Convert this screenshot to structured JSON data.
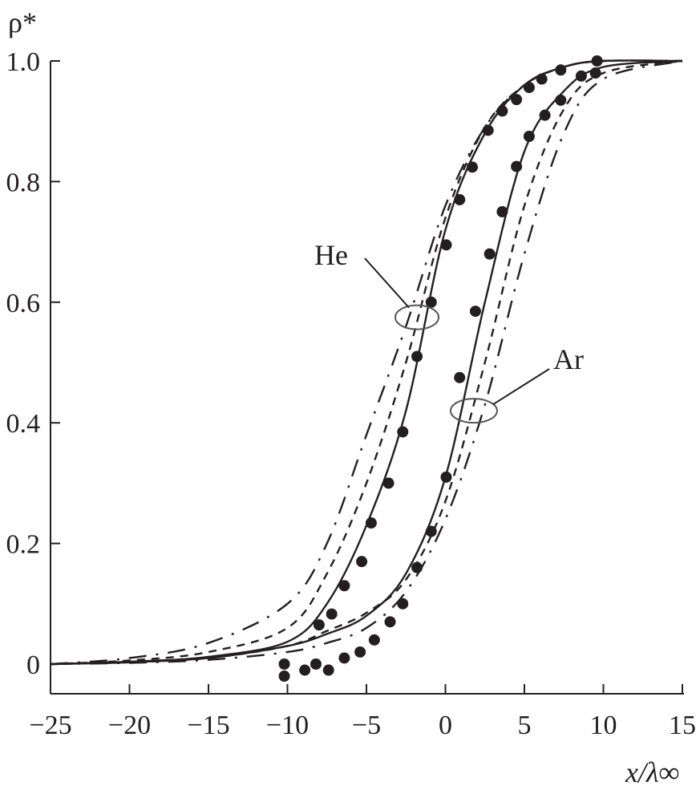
{
  "chart_data": {
    "type": "line",
    "xlabel": "x/λ∞",
    "ylabel": "ρ*",
    "xlim": [
      -25,
      15
    ],
    "ylim": [
      -0.04,
      1.0
    ],
    "xticks": [
      "−25",
      "−20",
      "−15",
      "−10",
      "−5",
      "0",
      "5",
      "10",
      "15"
    ],
    "xtick_values": [
      -25,
      -20,
      -15,
      -10,
      -5,
      0,
      5,
      10,
      15
    ],
    "yticks": [
      "0",
      "0.2",
      "0.4",
      "0.6",
      "0.8",
      "1.0"
    ],
    "ytick_values": [
      0,
      0.2,
      0.4,
      0.6,
      0.8,
      1.0
    ],
    "grid": false,
    "color": "#231f20",
    "annotations": [
      {
        "text": "He",
        "target_x": -1.8,
        "target_y": 0.575
      },
      {
        "text": "Ar",
        "target_x": 1.8,
        "target_y": 0.42
      }
    ],
    "series": [
      {
        "group": "He",
        "style": "solid",
        "x": [
          -25,
          -20,
          -15,
          -10,
          -7.5,
          -5,
          -2.5,
          0,
          2.5,
          5,
          7.5,
          10,
          15
        ],
        "y": [
          0,
          0.004,
          0.012,
          0.037,
          0.1,
          0.23,
          0.42,
          0.72,
          0.88,
          0.96,
          0.99,
          1.0,
          1.0
        ]
      },
      {
        "group": "He",
        "style": "dashed",
        "x": [
          -25,
          -20,
          -15,
          -10,
          -7.5,
          -5,
          -2.5,
          0,
          2.5,
          5,
          7.5,
          10,
          15
        ],
        "y": [
          0,
          0.006,
          0.02,
          0.06,
          0.15,
          0.3,
          0.5,
          0.74,
          0.89,
          0.96,
          0.99,
          1.0,
          1.0
        ]
      },
      {
        "group": "He",
        "style": "dash-dot",
        "x": [
          -25,
          -20,
          -15,
          -10,
          -7.5,
          -5,
          -2.5,
          0,
          2.5,
          5,
          7.5,
          10,
          15
        ],
        "y": [
          0,
          0.01,
          0.035,
          0.1,
          0.2,
          0.38,
          0.56,
          0.76,
          0.89,
          0.96,
          0.99,
          1.0,
          1.0
        ]
      },
      {
        "group": "Ar",
        "style": "solid",
        "x": [
          -25,
          -20,
          -15,
          -10,
          -7.5,
          -5,
          -2.5,
          0,
          2.5,
          5,
          7.5,
          10,
          15
        ],
        "y": [
          0,
          0.003,
          0.01,
          0.03,
          0.05,
          0.08,
          0.15,
          0.31,
          0.6,
          0.85,
          0.95,
          0.99,
          1.0
        ]
      },
      {
        "group": "Ar",
        "style": "dashed",
        "x": [
          -25,
          -20,
          -15,
          -10,
          -7.5,
          -5,
          -2.5,
          0,
          2.5,
          5,
          7.5,
          10,
          15
        ],
        "y": [
          0,
          0.003,
          0.01,
          0.03,
          0.055,
          0.085,
          0.14,
          0.27,
          0.5,
          0.76,
          0.92,
          0.98,
          1.0
        ]
      },
      {
        "group": "Ar",
        "style": "dash-dot",
        "x": [
          -25,
          -20,
          -15,
          -10,
          -7.5,
          -5,
          -2.5,
          0,
          2.5,
          5,
          7.5,
          10,
          15
        ],
        "y": [
          0,
          0.002,
          0.007,
          0.02,
          0.035,
          0.06,
          0.12,
          0.24,
          0.43,
          0.68,
          0.88,
          0.97,
          1.0
        ]
      }
    ],
    "points": [
      {
        "group": "He",
        "x": [
          -8.0,
          -7.2,
          -6.4,
          -5.3,
          -4.7,
          -3.6,
          -2.7,
          -1.8,
          -0.9,
          0.05,
          0.9,
          1.7,
          2.7,
          3.6,
          4.5,
          5.3,
          6.1,
          7.3,
          9.6
        ],
        "y": [
          0.065,
          0.083,
          0.13,
          0.17,
          0.234,
          0.3,
          0.385,
          0.51,
          0.6,
          0.695,
          0.77,
          0.824,
          0.885,
          0.917,
          0.936,
          0.956,
          0.97,
          0.985,
          1.0
        ]
      },
      {
        "group": "Ar",
        "x": [
          -10.2,
          -10.2,
          -8.9,
          -8.2,
          -7.4,
          -6.4,
          -5.4,
          -4.5,
          -3.5,
          -2.7,
          -1.8,
          -0.9,
          0.05,
          0.9,
          1.9,
          2.8,
          3.6,
          4.5,
          5.3,
          6.3,
          7.3,
          8.6,
          9.5
        ],
        "y": [
          0,
          -0.02,
          -0.01,
          0,
          -0.01,
          0.01,
          0.02,
          0.04,
          0.07,
          0.1,
          0.16,
          0.22,
          0.31,
          0.475,
          0.585,
          0.68,
          0.75,
          0.825,
          0.875,
          0.91,
          0.935,
          0.975,
          0.98
        ]
      }
    ]
  }
}
